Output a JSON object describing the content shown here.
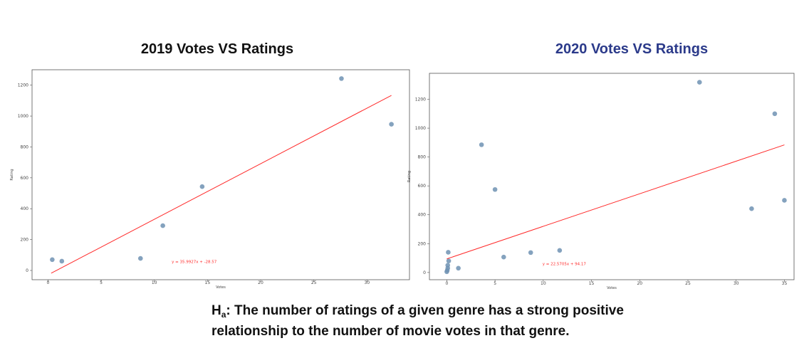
{
  "chart_data": [
    {
      "type": "scatter",
      "title": "2019 Votes VS Ratings",
      "xlabel": "Votes",
      "ylabel": "Rating",
      "xlim": [
        -1.5,
        34
      ],
      "ylim": [
        -60,
        1300
      ],
      "xticks": [
        0,
        5,
        10,
        15,
        20,
        25,
        30
      ],
      "yticks": [
        0,
        200,
        400,
        600,
        800,
        1000,
        1200
      ],
      "points": [
        {
          "x": 0.4,
          "y": 70
        },
        {
          "x": 1.3,
          "y": 60
        },
        {
          "x": 8.7,
          "y": 78
        },
        {
          "x": 10.8,
          "y": 290
        },
        {
          "x": 14.5,
          "y": 543
        },
        {
          "x": 27.6,
          "y": 1243
        },
        {
          "x": 32.3,
          "y": 947
        }
      ],
      "trendline": {
        "slope": 35.9927,
        "intercept": -28.57,
        "x_range": [
          0.3,
          32.3
        ]
      },
      "equation": "y = 35.9927x + -28.57",
      "point_color": "#6f92b3",
      "line_color": "#ff2a2a"
    },
    {
      "type": "scatter",
      "title": "2020 Votes VS Ratings",
      "xlabel": "Votes",
      "ylabel": "Rating",
      "xlim": [
        -1.8,
        36
      ],
      "ylim": [
        -50,
        1380
      ],
      "xticks": [
        0,
        5,
        10,
        15,
        20,
        25,
        30,
        35
      ],
      "yticks": [
        0,
        200,
        400,
        600,
        800,
        1000,
        1200
      ],
      "points": [
        {
          "x": 0.0,
          "y": 5
        },
        {
          "x": 0.05,
          "y": 15
        },
        {
          "x": 0.1,
          "y": 30
        },
        {
          "x": 0.1,
          "y": 50
        },
        {
          "x": 0.2,
          "y": 80
        },
        {
          "x": 0.15,
          "y": 140
        },
        {
          "x": 1.2,
          "y": 30
        },
        {
          "x": 3.6,
          "y": 885
        },
        {
          "x": 5.0,
          "y": 575
        },
        {
          "x": 5.9,
          "y": 107
        },
        {
          "x": 8.7,
          "y": 138
        },
        {
          "x": 11.7,
          "y": 153
        },
        {
          "x": 26.2,
          "y": 1318
        },
        {
          "x": 31.6,
          "y": 442
        },
        {
          "x": 34.0,
          "y": 1100
        },
        {
          "x": 35.0,
          "y": 500
        }
      ],
      "trendline": {
        "slope": 22.5705,
        "intercept": 94.17,
        "x_range": [
          0,
          35
        ]
      },
      "equation": "y = 22.5705x + 94.17",
      "point_color": "#6f92b3",
      "line_color": "#ff2a2a"
    }
  ],
  "hypothesis": {
    "prefix": "H",
    "subscript": "a",
    "line1": ": The number of ratings of a given genre has a strong positive",
    "line2": "relationship to the number of movie votes in that genre."
  }
}
